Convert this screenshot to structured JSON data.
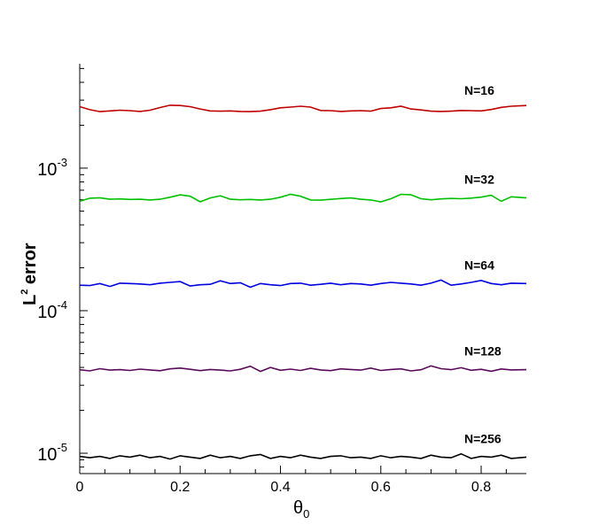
{
  "chart_data": {
    "type": "line",
    "xlabel": {
      "base": "θ",
      "sub": "0"
    },
    "ylabel": {
      "pre": "L",
      "sup": "2",
      "post": " error"
    },
    "x_ticks": [
      0,
      0.2,
      0.4,
      0.6,
      0.8
    ],
    "x_tick_labels": [
      "0",
      "0.2",
      "0.4",
      "0.6",
      "0.8"
    ],
    "xlim": [
      0,
      0.89
    ],
    "y_scale": "log",
    "y_major_ticks": [
      0.001,
      0.0001,
      1e-05
    ],
    "y_tick_labels": [
      {
        "base": "10",
        "exp": "-3"
      },
      {
        "base": "10",
        "exp": "-4"
      },
      {
        "base": "10",
        "exp": "-5"
      }
    ],
    "ylim": [
      7.2e-06,
      0.0054
    ],
    "grid": false,
    "series": [
      {
        "name": "N=16",
        "color": "#c00000",
        "x": [
          0,
          0.02,
          0.04,
          0.06,
          0.08,
          0.1,
          0.12,
          0.14,
          0.16,
          0.18,
          0.2,
          0.22,
          0.24,
          0.26,
          0.28,
          0.3,
          0.32,
          0.34,
          0.36,
          0.38,
          0.4,
          0.42,
          0.44,
          0.46,
          0.48,
          0.5,
          0.52,
          0.54,
          0.56,
          0.58,
          0.6,
          0.62,
          0.64,
          0.66,
          0.68,
          0.7,
          0.72,
          0.74,
          0.76,
          0.78,
          0.8,
          0.82,
          0.84,
          0.86,
          0.89
        ],
        "y": [
          0.0027,
          0.00257,
          0.00249,
          0.00252,
          0.00255,
          0.00253,
          0.0025,
          0.00255,
          0.00266,
          0.00276,
          0.00275,
          0.0027,
          0.0026,
          0.00252,
          0.00251,
          0.00252,
          0.0025,
          0.00249,
          0.00251,
          0.00257,
          0.00265,
          0.00268,
          0.00272,
          0.00268,
          0.00254,
          0.00253,
          0.0025,
          0.00252,
          0.00253,
          0.00251,
          0.00262,
          0.00265,
          0.00272,
          0.0026,
          0.00256,
          0.00251,
          0.0025,
          0.00251,
          0.00254,
          0.00253,
          0.00252,
          0.00258,
          0.00267,
          0.00272,
          0.00275
        ]
      },
      {
        "name": "N=32",
        "color": "#00c000",
        "x": [
          0,
          0.02,
          0.04,
          0.06,
          0.08,
          0.1,
          0.12,
          0.14,
          0.16,
          0.18,
          0.2,
          0.22,
          0.24,
          0.26,
          0.28,
          0.3,
          0.32,
          0.34,
          0.36,
          0.38,
          0.4,
          0.42,
          0.44,
          0.46,
          0.48,
          0.5,
          0.52,
          0.54,
          0.56,
          0.58,
          0.6,
          0.62,
          0.64,
          0.66,
          0.68,
          0.7,
          0.72,
          0.74,
          0.76,
          0.78,
          0.8,
          0.82,
          0.84,
          0.86,
          0.89
        ],
        "y": [
          0.000585,
          0.000615,
          0.00062,
          0.000605,
          0.000608,
          0.000603,
          0.000605,
          0.000598,
          0.000605,
          0.000625,
          0.00065,
          0.000635,
          0.00058,
          0.000618,
          0.00064,
          0.000605,
          0.0006,
          0.000603,
          0.000598,
          0.000605,
          0.000625,
          0.000655,
          0.000635,
          0.000598,
          0.000596,
          0.000604,
          0.000612,
          0.000618,
          0.000605,
          0.000598,
          0.00058,
          0.00061,
          0.000655,
          0.00065,
          0.00061,
          0.0006,
          0.000608,
          0.000613,
          0.00061,
          0.000616,
          0.000626,
          0.000645,
          0.000585,
          0.00063,
          0.000618
        ]
      },
      {
        "name": "N=64",
        "color": "#0000e0",
        "x": [
          0,
          0.02,
          0.04,
          0.06,
          0.08,
          0.1,
          0.12,
          0.14,
          0.16,
          0.18,
          0.2,
          0.22,
          0.24,
          0.26,
          0.28,
          0.3,
          0.32,
          0.34,
          0.36,
          0.38,
          0.4,
          0.42,
          0.44,
          0.46,
          0.48,
          0.5,
          0.52,
          0.54,
          0.56,
          0.58,
          0.6,
          0.62,
          0.64,
          0.66,
          0.68,
          0.7,
          0.72,
          0.74,
          0.76,
          0.78,
          0.8,
          0.82,
          0.84,
          0.86,
          0.89
        ],
        "y": [
          0.000151,
          0.00015,
          0.000155,
          0.000148,
          0.000156,
          0.000155,
          0.000154,
          0.000152,
          0.000156,
          0.000158,
          0.00016,
          0.000149,
          0.000152,
          0.000153,
          0.000162,
          0.000155,
          0.000157,
          0.000146,
          0.000155,
          0.000152,
          0.00015,
          0.000155,
          0.000156,
          0.000151,
          0.000153,
          0.000156,
          0.000152,
          0.000155,
          0.000154,
          0.000151,
          0.000155,
          0.000158,
          0.000156,
          0.000154,
          0.000151,
          0.000156,
          0.000164,
          0.000151,
          0.000154,
          0.000158,
          0.000163,
          0.000155,
          0.000152,
          0.000156,
          0.000155
        ]
      },
      {
        "name": "N=128",
        "color": "#5a0a5a",
        "x": [
          0,
          0.02,
          0.04,
          0.06,
          0.08,
          0.1,
          0.12,
          0.14,
          0.16,
          0.18,
          0.2,
          0.22,
          0.24,
          0.26,
          0.28,
          0.3,
          0.32,
          0.34,
          0.36,
          0.38,
          0.4,
          0.42,
          0.44,
          0.46,
          0.48,
          0.5,
          0.52,
          0.54,
          0.56,
          0.58,
          0.6,
          0.62,
          0.64,
          0.66,
          0.68,
          0.7,
          0.72,
          0.74,
          0.76,
          0.78,
          0.8,
          0.82,
          0.84,
          0.86,
          0.89
        ],
        "y": [
          3.85e-05,
          3.78e-05,
          3.92e-05,
          3.83e-05,
          3.86e-05,
          3.81e-05,
          3.89e-05,
          3.84e-05,
          3.79e-05,
          3.91e-05,
          3.96e-05,
          3.88e-05,
          3.8e-05,
          3.87e-05,
          3.83e-05,
          3.78e-05,
          3.88e-05,
          4.08e-05,
          3.75e-05,
          4e-05,
          3.82e-05,
          3.89e-05,
          3.81e-05,
          3.94e-05,
          3.84e-05,
          3.8e-05,
          3.91e-05,
          3.87e-05,
          3.83e-05,
          3.96e-05,
          3.81e-05,
          3.87e-05,
          3.91e-05,
          3.78e-05,
          3.85e-05,
          4.1e-05,
          3.92e-05,
          3.86e-05,
          3.98e-05,
          3.82e-05,
          3.88e-05,
          3.76e-05,
          3.9e-05,
          3.84e-05,
          3.86e-05
        ]
      },
      {
        "name": "N=256",
        "color": "#000000",
        "x": [
          0,
          0.02,
          0.04,
          0.06,
          0.08,
          0.1,
          0.12,
          0.14,
          0.16,
          0.18,
          0.2,
          0.22,
          0.24,
          0.26,
          0.28,
          0.3,
          0.32,
          0.34,
          0.36,
          0.38,
          0.4,
          0.42,
          0.44,
          0.46,
          0.48,
          0.5,
          0.52,
          0.54,
          0.56,
          0.58,
          0.6,
          0.62,
          0.64,
          0.66,
          0.68,
          0.7,
          0.72,
          0.74,
          0.76,
          0.78,
          0.8,
          0.82,
          0.84,
          0.86,
          0.89
        ],
        "y": [
          9.5e-06,
          9.3e-06,
          9.5e-06,
          9.2e-06,
          9.6e-06,
          9.4e-06,
          9.7e-06,
          9.3e-06,
          9.5e-06,
          9.1e-06,
          9.6e-06,
          9.4e-06,
          9.2e-06,
          9.7e-06,
          9.3e-06,
          9.5e-06,
          9.2e-06,
          9.6e-06,
          9.8e-06,
          9.2e-06,
          9.5e-06,
          9.3e-06,
          9.7e-06,
          9.4e-06,
          9.2e-06,
          9.5e-06,
          9.6e-06,
          9.3e-06,
          9.4e-06,
          9.2e-06,
          9.6e-06,
          9.3e-06,
          9.5e-06,
          9.4e-06,
          9.2e-06,
          9.7e-06,
          9.4e-06,
          9.3e-06,
          9.9e-06,
          9.2e-06,
          9.5e-06,
          9.4e-06,
          9.7e-06,
          9.2e-06,
          9.4e-06
        ]
      }
    ]
  }
}
